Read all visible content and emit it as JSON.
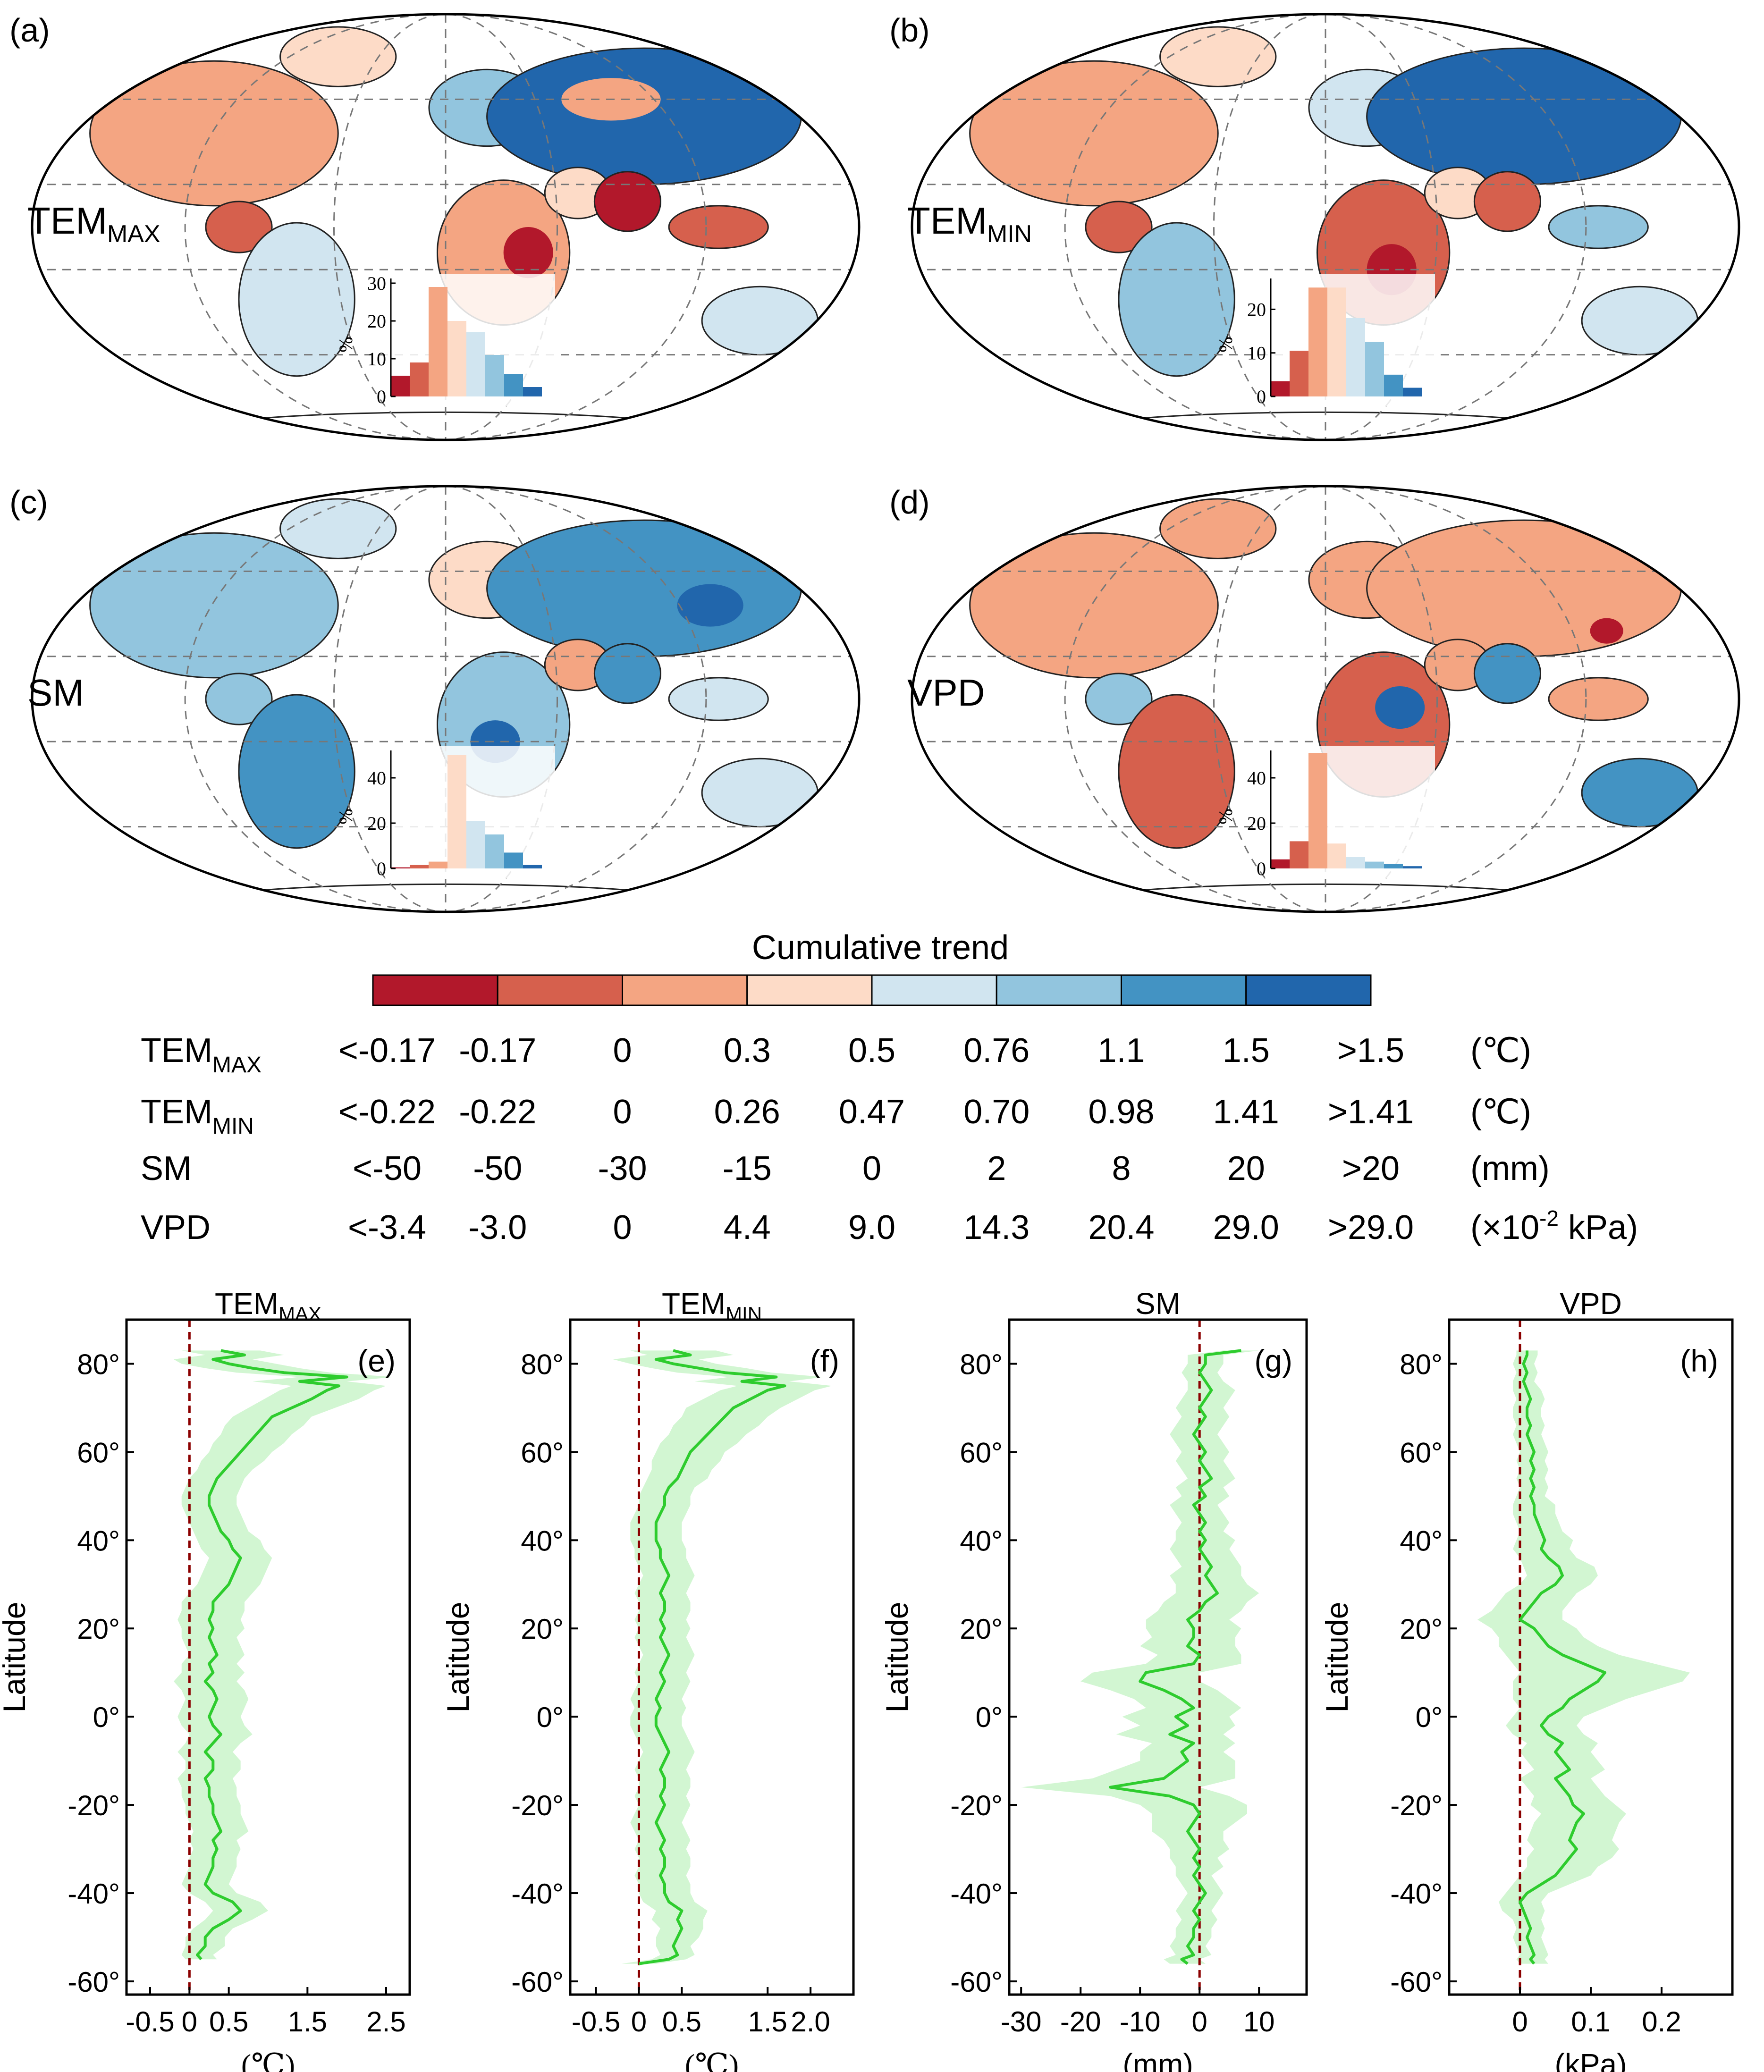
{
  "figure": {
    "colorbar_title": "Cumulative trend",
    "colors": [
      "#b2182b",
      "#d6604d",
      "#f4a582",
      "#fddbc7",
      "#d1e5f0",
      "#92c5de",
      "#4393c3",
      "#2166ac"
    ],
    "grid_color": "#777777",
    "ref_line_color": "#8b0000",
    "line_color": "#2ecc2e",
    "band_color": "#cdf5cd"
  },
  "maps": [
    {
      "id": "a",
      "panel_label": "(a)",
      "var_main": "TEM",
      "var_sub": "MAX",
      "hist_ticks": [
        "0",
        "10",
        "20",
        "30"
      ],
      "hist_ymax": 30,
      "hist_values": [
        5.5,
        9,
        29,
        20,
        17,
        11,
        6,
        2.5
      ]
    },
    {
      "id": "b",
      "panel_label": "(b)",
      "var_main": "TEM",
      "var_sub": "MIN",
      "hist_ticks": [
        "0",
        "10",
        "20"
      ],
      "hist_ymax": 26,
      "hist_values": [
        3.5,
        10.5,
        25,
        25,
        18,
        12.5,
        5,
        2
      ]
    },
    {
      "id": "c",
      "panel_label": "(c)",
      "var_main": "SM",
      "var_sub": "",
      "hist_ticks": [
        "0",
        "20",
        "40"
      ],
      "hist_ymax": 50,
      "hist_values": [
        0.5,
        1.5,
        3,
        50,
        21,
        15,
        7,
        1.5
      ]
    },
    {
      "id": "d",
      "panel_label": "(d)",
      "var_main": "VPD",
      "var_sub": "",
      "hist_ticks": [
        "0",
        "20",
        "40"
      ],
      "hist_ymax": 50,
      "hist_values": [
        4,
        12,
        51,
        11,
        5,
        3,
        2,
        1
      ]
    }
  ],
  "hist_axis_label": "%",
  "legend_rows": [
    {
      "name_main": "TEM",
      "name_sub": "MAX",
      "values": [
        "<-0.17",
        "-0.17",
        "0",
        "0.3",
        "0.5",
        "0.76",
        "1.1",
        "1.5",
        ">1.5"
      ],
      "unit": "(℃)"
    },
    {
      "name_main": "TEM",
      "name_sub": "MIN",
      "values": [
        "<-0.22",
        "-0.22",
        "0",
        "0.26",
        "0.47",
        "0.70",
        "0.98",
        "1.41",
        ">1.41"
      ],
      "unit": "(℃)"
    },
    {
      "name_main": "SM",
      "name_sub": "",
      "values": [
        "<-50",
        "-50",
        "-30",
        "-15",
        "0",
        "2",
        "8",
        "20",
        ">20"
      ],
      "unit": "(mm)"
    },
    {
      "name_main": "VPD",
      "name_sub": "",
      "values": [
        "<-3.4",
        "-3.0",
        "0",
        "4.4",
        "9.0",
        "14.3",
        "20.4",
        "29.0",
        ">29.0"
      ],
      "unit_prefix": "(×10",
      "unit_sup": "-2",
      "unit_suffix": " kPa)"
    }
  ],
  "chart_data": [
    {
      "type": "line",
      "panel_label": "(e)",
      "title_main": "TEM",
      "title_sub": "MAX",
      "xlabel": "(℃)",
      "ylabel": "Latitude",
      "xlim": [
        -0.8,
        2.8
      ],
      "ylim": [
        -63,
        90
      ],
      "xticks": [
        -0.5,
        0,
        0.5,
        1.5,
        2.5
      ],
      "xtick_labels": [
        "-0.5",
        "0",
        "0.5",
        "1.5",
        "2.5"
      ],
      "yticks": [
        80,
        60,
        40,
        20,
        0,
        -20,
        -40,
        -60
      ],
      "ytick_labels": [
        "80°",
        "60°",
        "40°",
        "20°",
        "0°",
        "-20°",
        "-40°",
        "-60°"
      ],
      "lat": [
        -55,
        -54,
        -52,
        -50,
        -48,
        -46,
        -44,
        -42,
        -40,
        -38,
        -36,
        -34,
        -32,
        -30,
        -28,
        -26,
        -24,
        -22,
        -20,
        -18,
        -16,
        -14,
        -12,
        -10,
        -8,
        -6,
        -4,
        -2,
        0,
        2,
        4,
        6,
        8,
        10,
        12,
        14,
        16,
        18,
        20,
        22,
        24,
        26,
        28,
        30,
        32,
        34,
        36,
        38,
        40,
        42,
        44,
        46,
        48,
        50,
        52,
        54,
        56,
        58,
        60,
        62,
        64,
        66,
        68,
        70,
        72,
        74,
        75,
        76,
        77,
        78,
        79,
        80,
        81,
        82,
        83
      ],
      "mean": [
        0.15,
        0.1,
        0.2,
        0.2,
        0.3,
        0.5,
        0.65,
        0.55,
        0.3,
        0.2,
        0.25,
        0.3,
        0.3,
        0.35,
        0.3,
        0.4,
        0.35,
        0.3,
        0.3,
        0.25,
        0.25,
        0.2,
        0.3,
        0.3,
        0.2,
        0.3,
        0.4,
        0.3,
        0.25,
        0.3,
        0.35,
        0.3,
        0.2,
        0.3,
        0.25,
        0.35,
        0.3,
        0.25,
        0.3,
        0.25,
        0.3,
        0.3,
        0.4,
        0.5,
        0.55,
        0.6,
        0.65,
        0.55,
        0.5,
        0.4,
        0.35,
        0.3,
        0.25,
        0.25,
        0.3,
        0.35,
        0.45,
        0.55,
        0.65,
        0.75,
        0.85,
        0.95,
        1.05,
        1.3,
        1.55,
        1.75,
        1.9,
        1.4,
        2.0,
        1.2,
        0.8,
        0.5,
        0.3,
        0.7,
        0.4
      ],
      "band": [
        0.2,
        0.2,
        0.25,
        0.25,
        0.25,
        0.3,
        0.35,
        0.35,
        0.3,
        0.3,
        0.3,
        0.3,
        0.3,
        0.3,
        0.3,
        0.35,
        0.35,
        0.35,
        0.35,
        0.35,
        0.35,
        0.35,
        0.35,
        0.35,
        0.35,
        0.35,
        0.4,
        0.4,
        0.4,
        0.4,
        0.4,
        0.4,
        0.4,
        0.4,
        0.35,
        0.35,
        0.35,
        0.35,
        0.4,
        0.4,
        0.4,
        0.4,
        0.4,
        0.4,
        0.4,
        0.4,
        0.4,
        0.4,
        0.4,
        0.35,
        0.35,
        0.35,
        0.35,
        0.35,
        0.35,
        0.35,
        0.35,
        0.4,
        0.4,
        0.45,
        0.45,
        0.5,
        0.5,
        0.55,
        0.6,
        0.6,
        0.6,
        0.6,
        0.6,
        0.6,
        0.6,
        0.6,
        0.5,
        0.5,
        0.5
      ]
    },
    {
      "type": "line",
      "panel_label": "(f)",
      "title_main": "TEM",
      "title_sub": "MIN",
      "xlabel": "(℃)",
      "ylabel": "Latitude",
      "xlim": [
        -0.8,
        2.5
      ],
      "ylim": [
        -63,
        90
      ],
      "xticks": [
        -0.5,
        0,
        0.5,
        1.5,
        2.0
      ],
      "xtick_labels": [
        "-0.5",
        "0",
        "0.5",
        "1.5",
        "2.0"
      ],
      "yticks": [
        80,
        60,
        40,
        20,
        0,
        -20,
        -40,
        -60
      ],
      "ytick_labels": [
        "80°",
        "60°",
        "40°",
        "20°",
        "0°",
        "-20°",
        "-40°",
        "-60°"
      ],
      "lat": [
        -56,
        -55,
        -54,
        -52,
        -50,
        -48,
        -46,
        -44,
        -42,
        -40,
        -38,
        -36,
        -34,
        -32,
        -30,
        -28,
        -26,
        -24,
        -22,
        -20,
        -18,
        -16,
        -14,
        -12,
        -10,
        -8,
        -6,
        -4,
        -2,
        0,
        2,
        4,
        6,
        8,
        10,
        12,
        14,
        16,
        18,
        20,
        22,
        24,
        26,
        28,
        30,
        32,
        34,
        36,
        38,
        40,
        42,
        44,
        46,
        48,
        50,
        52,
        54,
        56,
        58,
        60,
        62,
        64,
        66,
        68,
        70,
        72,
        74,
        75,
        76,
        77,
        78,
        79,
        80,
        81,
        82,
        83
      ],
      "mean": [
        0.0,
        0.35,
        0.45,
        0.4,
        0.45,
        0.5,
        0.45,
        0.5,
        0.35,
        0.3,
        0.3,
        0.25,
        0.3,
        0.3,
        0.25,
        0.3,
        0.25,
        0.2,
        0.25,
        0.3,
        0.25,
        0.3,
        0.3,
        0.25,
        0.3,
        0.35,
        0.3,
        0.25,
        0.2,
        0.2,
        0.25,
        0.2,
        0.25,
        0.3,
        0.25,
        0.3,
        0.35,
        0.3,
        0.25,
        0.3,
        0.25,
        0.3,
        0.3,
        0.25,
        0.3,
        0.35,
        0.3,
        0.25,
        0.25,
        0.2,
        0.2,
        0.2,
        0.25,
        0.3,
        0.3,
        0.35,
        0.45,
        0.5,
        0.55,
        0.6,
        0.7,
        0.8,
        0.9,
        1.0,
        1.1,
        1.3,
        1.5,
        1.7,
        1.2,
        1.6,
        1.0,
        0.7,
        0.4,
        0.2,
        0.6,
        0.4
      ],
      "band": [
        0.2,
        0.2,
        0.2,
        0.2,
        0.25,
        0.25,
        0.3,
        0.3,
        0.3,
        0.3,
        0.3,
        0.3,
        0.3,
        0.3,
        0.3,
        0.3,
        0.3,
        0.3,
        0.3,
        0.3,
        0.3,
        0.3,
        0.3,
        0.3,
        0.3,
        0.3,
        0.3,
        0.3,
        0.3,
        0.3,
        0.3,
        0.3,
        0.3,
        0.3,
        0.3,
        0.3,
        0.3,
        0.3,
        0.3,
        0.3,
        0.3,
        0.3,
        0.3,
        0.3,
        0.3,
        0.3,
        0.3,
        0.3,
        0.3,
        0.3,
        0.3,
        0.3,
        0.3,
        0.3,
        0.3,
        0.3,
        0.35,
        0.35,
        0.4,
        0.4,
        0.45,
        0.45,
        0.5,
        0.5,
        0.55,
        0.55,
        0.55,
        0.55,
        0.55,
        0.55,
        0.55,
        0.55,
        0.5,
        0.5,
        0.5,
        0.5
      ]
    },
    {
      "type": "line",
      "panel_label": "(g)",
      "title_main": "SM",
      "title_sub": "",
      "xlabel": "(mm)",
      "ylabel": "Latitude",
      "xlim": [
        -32,
        18
      ],
      "ylim": [
        -63,
        90
      ],
      "xticks": [
        -30,
        -20,
        -10,
        0,
        10
      ],
      "xtick_labels": [
        "-30",
        "-20",
        "-10",
        "0",
        "10"
      ],
      "yticks": [
        80,
        60,
        40,
        20,
        0,
        -20,
        -40,
        -60
      ],
      "ytick_labels": [
        "80°",
        "60°",
        "40°",
        "20°",
        "0°",
        "-20°",
        "-40°",
        "-60°"
      ],
      "lat": [
        -56,
        -55,
        -54,
        -52,
        -50,
        -48,
        -46,
        -44,
        -42,
        -40,
        -38,
        -36,
        -34,
        -32,
        -30,
        -28,
        -26,
        -24,
        -22,
        -20,
        -18,
        -16,
        -14,
        -12,
        -10,
        -8,
        -6,
        -4,
        -2,
        0,
        2,
        4,
        6,
        8,
        10,
        12,
        14,
        16,
        18,
        20,
        22,
        24,
        26,
        28,
        30,
        32,
        34,
        36,
        38,
        40,
        42,
        44,
        46,
        48,
        50,
        52,
        54,
        56,
        58,
        60,
        62,
        64,
        66,
        68,
        70,
        72,
        74,
        76,
        78,
        80,
        82,
        83
      ],
      "mean": [
        -2,
        -3,
        -1,
        -2,
        -1,
        -1,
        0,
        -1,
        0,
        1,
        0,
        -1,
        0,
        -1,
        0,
        -1,
        -2,
        -1,
        0,
        -1,
        -5,
        -15,
        -6,
        -4,
        -2,
        -3,
        -1,
        -5,
        -2,
        -4,
        -1,
        -3,
        -6,
        -10,
        -9,
        -1,
        0,
        -2,
        -1,
        -1,
        -2,
        0,
        1,
        3,
        2,
        1,
        2,
        1,
        0,
        1,
        0,
        1,
        0,
        -1,
        1,
        0,
        2,
        1,
        0,
        1,
        0,
        -1,
        0,
        1,
        0,
        1,
        2,
        1,
        0,
        1,
        1,
        7
      ],
      "band": [
        3,
        3,
        3,
        3,
        3,
        3,
        3,
        3,
        3,
        3,
        3,
        3,
        4,
        4,
        5,
        5,
        6,
        7,
        8,
        9,
        10,
        15,
        12,
        10,
        8,
        7,
        7,
        9,
        8,
        9,
        8,
        8,
        9,
        10,
        9,
        8,
        7,
        8,
        7,
        8,
        7,
        7,
        7,
        7,
        6,
        6,
        5,
        5,
        5,
        5,
        4,
        4,
        4,
        4,
        4,
        4,
        4,
        4,
        4,
        4,
        4,
        4,
        4,
        4,
        4,
        4,
        4,
        3,
        3,
        3,
        3,
        3
      ]
    },
    {
      "type": "line",
      "panel_label": "(h)",
      "title_main": "VPD",
      "title_sub": "",
      "xlabel": "(kPa)",
      "ylabel": "Latitude",
      "xlim": [
        -0.1,
        0.3
      ],
      "ylim": [
        -63,
        90
      ],
      "xticks": [
        0,
        0.1,
        0.2
      ],
      "xtick_labels": [
        "0",
        "0.1",
        "0.2"
      ],
      "yticks": [
        80,
        60,
        40,
        20,
        0,
        -20,
        -40,
        -60
      ],
      "ytick_labels": [
        "80°",
        "60°",
        "40°",
        "20°",
        "0°",
        "-20°",
        "-40°",
        "-60°"
      ],
      "lat": [
        -56,
        -55,
        -54,
        -52,
        -50,
        -48,
        -46,
        -44,
        -42,
        -40,
        -38,
        -36,
        -34,
        -32,
        -30,
        -28,
        -26,
        -24,
        -22,
        -20,
        -18,
        -16,
        -14,
        -12,
        -10,
        -8,
        -6,
        -4,
        -2,
        0,
        2,
        4,
        6,
        8,
        10,
        12,
        14,
        16,
        18,
        20,
        22,
        24,
        26,
        28,
        30,
        32,
        34,
        36,
        38,
        40,
        42,
        44,
        46,
        48,
        50,
        52,
        54,
        56,
        58,
        60,
        62,
        64,
        66,
        68,
        70,
        72,
        74,
        76,
        78,
        80,
        82,
        83
      ],
      "mean": [
        0.02,
        0.015,
        0.02,
        0.015,
        0.01,
        0.015,
        0.01,
        0.005,
        0.0,
        0.01,
        0.03,
        0.05,
        0.06,
        0.07,
        0.08,
        0.07,
        0.075,
        0.08,
        0.09,
        0.075,
        0.07,
        0.06,
        0.05,
        0.07,
        0.06,
        0.05,
        0.06,
        0.04,
        0.03,
        0.04,
        0.06,
        0.07,
        0.09,
        0.11,
        0.12,
        0.09,
        0.06,
        0.04,
        0.03,
        0.02,
        0.0,
        0.01,
        0.02,
        0.03,
        0.05,
        0.06,
        0.055,
        0.04,
        0.03,
        0.035,
        0.03,
        0.025,
        0.02,
        0.02,
        0.015,
        0.02,
        0.015,
        0.02,
        0.015,
        0.02,
        0.015,
        0.01,
        0.015,
        0.01,
        0.01,
        0.015,
        0.01,
        0.005,
        0.01,
        0.005,
        0.01,
        0.01
      ],
      "band": [
        0.02,
        0.02,
        0.02,
        0.02,
        0.02,
        0.02,
        0.02,
        0.03,
        0.03,
        0.03,
        0.04,
        0.05,
        0.05,
        0.06,
        0.06,
        0.06,
        0.06,
        0.06,
        0.06,
        0.06,
        0.05,
        0.05,
        0.05,
        0.05,
        0.05,
        0.05,
        0.05,
        0.05,
        0.05,
        0.05,
        0.06,
        0.08,
        0.1,
        0.12,
        0.12,
        0.1,
        0.08,
        0.07,
        0.06,
        0.06,
        0.06,
        0.05,
        0.05,
        0.05,
        0.05,
        0.05,
        0.05,
        0.04,
        0.04,
        0.04,
        0.03,
        0.03,
        0.03,
        0.03,
        0.02,
        0.02,
        0.02,
        0.02,
        0.02,
        0.02,
        0.02,
        0.02,
        0.02,
        0.02,
        0.02,
        0.02,
        0.02,
        0.015,
        0.015,
        0.015,
        0.015,
        0.015
      ]
    }
  ]
}
